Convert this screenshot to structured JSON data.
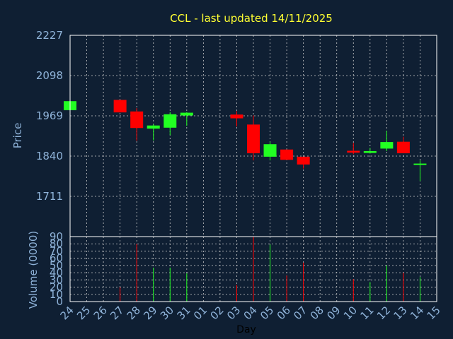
{
  "chart_data": [
    {
      "type": "candlestick",
      "title": "CCL - last updated 14/11/2025",
      "ylabel": "Price",
      "ylim": [
        1582,
        2227
      ],
      "yticks": [
        "2227",
        "2098",
        "1969",
        "1840",
        "1711"
      ],
      "categories": [
        "24",
        "25",
        "26",
        "27",
        "28",
        "29",
        "30",
        "31",
        "01",
        "02",
        "03",
        "04",
        "05",
        "06",
        "07",
        "08",
        "09",
        "10",
        "11",
        "12",
        "13",
        "14",
        "15"
      ],
      "candles": [
        {
          "day": "24",
          "open": 1987,
          "close": 2016,
          "high": 2016,
          "low": 1987,
          "direction": "up"
        },
        {
          "day": "27",
          "open": 2020,
          "close": 1980,
          "high": 2020,
          "low": 1980,
          "direction": "down"
        },
        {
          "day": "28",
          "open": 1983,
          "close": 1930,
          "high": 1994,
          "low": 1889,
          "direction": "down"
        },
        {
          "day": "29",
          "open": 1928,
          "close": 1938,
          "high": 1942,
          "low": 1890,
          "direction": "up"
        },
        {
          "day": "30",
          "open": 1931,
          "close": 1974,
          "high": 1981,
          "low": 1907,
          "direction": "up"
        },
        {
          "day": "31",
          "open": 1970,
          "close": 1979,
          "high": 1981,
          "low": 1937,
          "direction": "up"
        },
        {
          "day": "03",
          "open": 1973,
          "close": 1961,
          "high": 1984,
          "low": 1935,
          "direction": "down"
        },
        {
          "day": "04",
          "open": 1941,
          "close": 1849,
          "high": 1970,
          "low": 1826,
          "direction": "down"
        },
        {
          "day": "05",
          "open": 1838,
          "close": 1878,
          "high": 1886,
          "low": 1826,
          "direction": "up"
        },
        {
          "day": "06",
          "open": 1861,
          "close": 1828,
          "high": 1861,
          "low": 1828,
          "direction": "down"
        },
        {
          "day": "07",
          "open": 1838,
          "close": 1813,
          "high": 1838,
          "low": 1800,
          "direction": "down"
        },
        {
          "day": "10",
          "open": 1857,
          "close": 1851,
          "high": 1882,
          "low": 1846,
          "direction": "down"
        },
        {
          "day": "11",
          "open": 1850,
          "close": 1856,
          "high": 1866,
          "low": 1848,
          "direction": "up"
        },
        {
          "day": "12",
          "open": 1864,
          "close": 1885,
          "high": 1921,
          "low": 1856,
          "direction": "up"
        },
        {
          "day": "13",
          "open": 1886,
          "close": 1849,
          "high": 1902,
          "low": 1849,
          "direction": "down"
        },
        {
          "day": "14",
          "open": 1814,
          "close": 1816,
          "high": 1826,
          "low": 1760,
          "direction": "up"
        }
      ],
      "grid": true
    },
    {
      "type": "bar",
      "ylabel": "Volume (0000)",
      "xlabel": "Day",
      "ylim": [
        0,
        90
      ],
      "yticks": [
        "90",
        "80",
        "70",
        "60",
        "50",
        "40",
        "30",
        "20",
        "10",
        "0"
      ],
      "values": [
        {
          "day": "27",
          "volume": 20,
          "direction": "down"
        },
        {
          "day": "28",
          "volume": 80,
          "direction": "down"
        },
        {
          "day": "29",
          "volume": 47,
          "direction": "up"
        },
        {
          "day": "30",
          "volume": 47,
          "direction": "up"
        },
        {
          "day": "31",
          "volume": 39,
          "direction": "up"
        },
        {
          "day": "03",
          "volume": 23,
          "direction": "down"
        },
        {
          "day": "04",
          "volume": 90,
          "direction": "down"
        },
        {
          "day": "05",
          "volume": 79,
          "direction": "up"
        },
        {
          "day": "06",
          "volume": 36,
          "direction": "down"
        },
        {
          "day": "07",
          "volume": 54,
          "direction": "down"
        },
        {
          "day": "10",
          "volume": 31,
          "direction": "down"
        },
        {
          "day": "11",
          "volume": 27,
          "direction": "up"
        },
        {
          "day": "12",
          "volume": 50,
          "direction": "up"
        },
        {
          "day": "13",
          "volume": 40,
          "direction": "down"
        },
        {
          "day": "14",
          "volume": 34,
          "direction": "up"
        }
      ],
      "grid": true
    }
  ],
  "colors": {
    "background": "#0f1f33",
    "frame": "#ffffff",
    "grid": "#cccccc",
    "up": "#22ff22",
    "down": "#ff0000",
    "title": "#ffff33",
    "axis_text": "#8fb3d9",
    "xlabel": "#000000"
  }
}
